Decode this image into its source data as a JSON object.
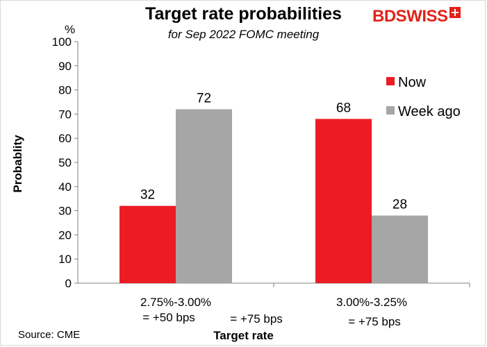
{
  "chart_data": {
    "type": "bar",
    "title": "Target rate probabilities",
    "subtitle": "for Sep 2022 FOMC meeting",
    "xlabel": "Target rate",
    "ylabel": "Probablity",
    "y_unit": "%",
    "ylim": [
      0,
      100
    ],
    "y_ticks": [
      0,
      10,
      20,
      30,
      40,
      50,
      60,
      70,
      80,
      90,
      100
    ],
    "grid": false,
    "legend_position": "right",
    "categories": [
      "2.75%-3.00%",
      "3.00%-3.25%"
    ],
    "category_sublabels": [
      "= +50 bps",
      "= +75 bps"
    ],
    "extra_annotation": "= +75 bps",
    "series": [
      {
        "name": "Now",
        "color": "#ed1c24",
        "values": [
          32,
          68
        ]
      },
      {
        "name": "Week ago",
        "color": "#a6a6a6",
        "values": [
          72,
          28
        ]
      }
    ]
  },
  "brand": {
    "name": "BDSWISS"
  },
  "source": "Source: CME"
}
